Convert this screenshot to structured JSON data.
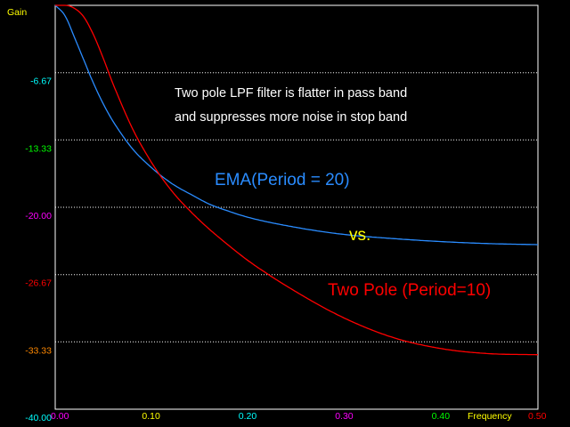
{
  "chart_data": {
    "type": "line",
    "ylabel": "Gain",
    "xlabel": "Frequency",
    "xlim": [
      0,
      0.5
    ],
    "ylim": [
      -40,
      0
    ],
    "x_ticks": [
      {
        "value": 0.1,
        "label": "0.10",
        "color": "#ffff00"
      },
      {
        "value": 0.2,
        "label": "0.20",
        "color": "#00ffff"
      },
      {
        "value": 0.3,
        "label": "0.30",
        "color": "#ff00ff"
      },
      {
        "value": 0.4,
        "label": "0.40",
        "color": "#00ff00"
      },
      {
        "value": 0.5,
        "label": "0.50",
        "color": "#ff0000"
      }
    ],
    "x_origin_label": {
      "label": "0.00",
      "color": "#ff00ff"
    },
    "y_ticks": [
      {
        "value": -6.67,
        "label": "-6.67",
        "color": "#00ffff"
      },
      {
        "value": -13.33,
        "label": "-13.33",
        "color": "#00ff00"
      },
      {
        "value": -20.0,
        "label": "-20.00",
        "color": "#ff00ff"
      },
      {
        "value": -26.67,
        "label": "-26.67",
        "color": "#ff0000"
      },
      {
        "value": -33.33,
        "label": "-33.33",
        "color": "#ff8800"
      },
      {
        "value": -40.0,
        "label": "-40.00",
        "color": "#00ffff"
      }
    ],
    "grid": "horizontal-dotted",
    "series": [
      {
        "name": "EMA(Period = 20)",
        "color": "#2a8cff",
        "x": [
          0,
          0.01,
          0.02,
          0.03,
          0.04,
          0.05,
          0.06,
          0.08,
          0.1,
          0.12,
          0.14,
          0.16,
          0.18,
          0.2,
          0.25,
          0.3,
          0.35,
          0.4,
          0.45,
          0.5
        ],
        "values": [
          0,
          -1.0,
          -3.2,
          -5.5,
          -7.8,
          -9.8,
          -11.5,
          -14.2,
          -16.1,
          -17.6,
          -18.7,
          -19.7,
          -20.4,
          -21.0,
          -22.0,
          -22.7,
          -23.1,
          -23.4,
          -23.6,
          -23.7
        ]
      },
      {
        "name": "Two Pole (Period=10)",
        "color": "#ff0000",
        "x": [
          0,
          0.01,
          0.02,
          0.03,
          0.04,
          0.05,
          0.06,
          0.08,
          0.1,
          0.12,
          0.14,
          0.16,
          0.18,
          0.2,
          0.25,
          0.3,
          0.35,
          0.4,
          0.45,
          0.5
        ],
        "values": [
          0,
          0,
          -0.3,
          -1.2,
          -3.0,
          -5.3,
          -7.8,
          -12.2,
          -15.6,
          -18.3,
          -20.4,
          -22.2,
          -23.8,
          -25.3,
          -28.4,
          -31.0,
          -32.9,
          -34.0,
          -34.5,
          -34.6
        ]
      }
    ],
    "annotations": [
      {
        "text": "Two pole LPF filter is flatter in pass band",
        "color": "#ffffff"
      },
      {
        "text": "and suppresses more noise in stop band",
        "color": "#ffffff"
      },
      {
        "text": "EMA(Period = 20)",
        "color": "#2a8cff"
      },
      {
        "text": "vs.",
        "color": "#ffff00"
      },
      {
        "text": "Two Pole (Period=10)",
        "color": "#ff0000"
      }
    ]
  }
}
